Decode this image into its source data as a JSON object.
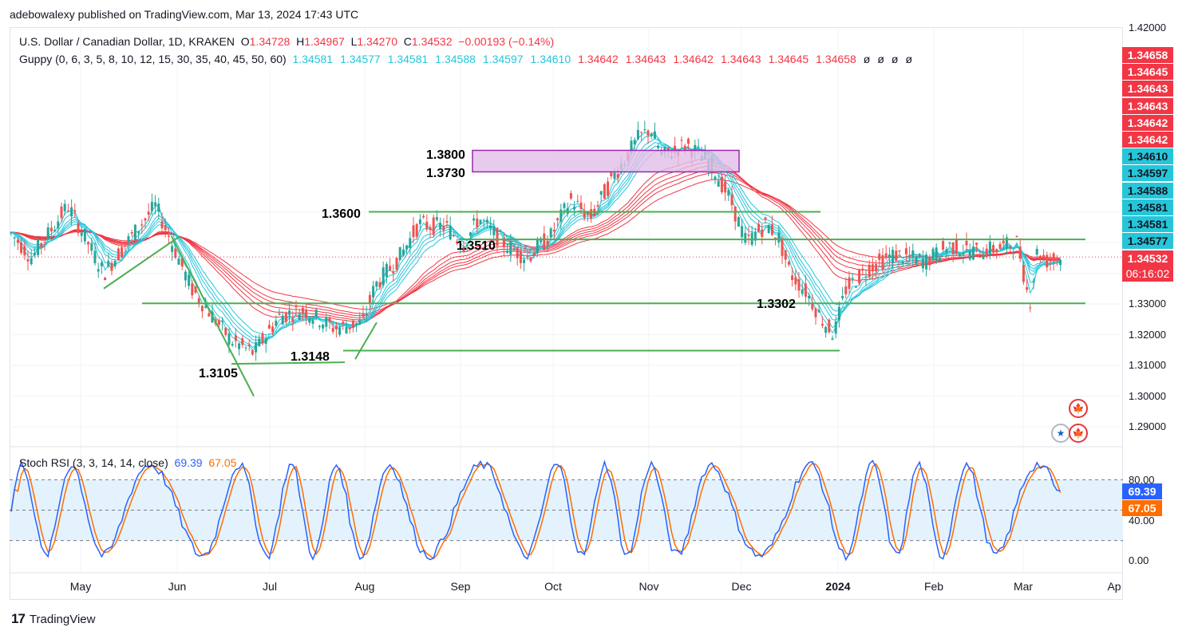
{
  "header": {
    "publisher": "adebowalexy published on TradingView.com, Mar 13, 2024 17:43 UTC"
  },
  "legend": {
    "symbol": "U.S. Dollar / Canadian Dollar, 1D, KRAKEN",
    "open_label": "O",
    "open": "1.34728",
    "high_label": "H",
    "high": "1.34967",
    "low_label": "L",
    "low": "1.34270",
    "close_label": "C",
    "close": "1.34532",
    "change": "−0.00193 (−0.14%)",
    "guppy_label": "Guppy (0, 6, 3, 5, 8, 10, 12, 15, 30, 35, 40, 45, 50, 60)",
    "guppy_values": [
      {
        "v": "1.34581",
        "c": "#26c6da"
      },
      {
        "v": "1.34577",
        "c": "#26c6da"
      },
      {
        "v": "1.34581",
        "c": "#26c6da"
      },
      {
        "v": "1.34588",
        "c": "#26c6da"
      },
      {
        "v": "1.34597",
        "c": "#26c6da"
      },
      {
        "v": "1.34610",
        "c": "#26c6da"
      },
      {
        "v": "1.34642",
        "c": "#f23645"
      },
      {
        "v": "1.34643",
        "c": "#f23645"
      },
      {
        "v": "1.34642",
        "c": "#f23645"
      },
      {
        "v": "1.34643",
        "c": "#f23645"
      },
      {
        "v": "1.34645",
        "c": "#f23645"
      },
      {
        "v": "1.34658",
        "c": "#f23645"
      },
      {
        "v": "ø",
        "c": "#131722"
      },
      {
        "v": "ø",
        "c": "#131722"
      },
      {
        "v": "ø",
        "c": "#131722"
      },
      {
        "v": "ø",
        "c": "#131722"
      }
    ],
    "stoch_label": "Stoch RSI (3, 3, 14, 14, close)",
    "stoch_k": "69.39",
    "stoch_d": "67.05"
  },
  "colors": {
    "up_candle": "#26a69a",
    "down_candle": "#ef5350",
    "fast_ema": "#26c6da",
    "slow_ema": "#f23645",
    "level_line": "#4caf50",
    "box_fill": "#e1bee7",
    "box_border": "#9c27b0",
    "stoch_k": "#2962ff",
    "stoch_d": "#ff6d00",
    "rsi_band": "#e3f2fd"
  },
  "price_axis": {
    "ticks": [
      "1.42000",
      "1.33000",
      "1.32000",
      "1.31000",
      "1.30000",
      "1.29000"
    ],
    "tags": [
      {
        "v": "1.34658",
        "c": "#f23645"
      },
      {
        "v": "1.34645",
        "c": "#f23645"
      },
      {
        "v": "1.34643",
        "c": "#f23645"
      },
      {
        "v": "1.34643",
        "c": "#f23645"
      },
      {
        "v": "1.34642",
        "c": "#f23645"
      },
      {
        "v": "1.34642",
        "c": "#f23645"
      },
      {
        "v": "1.34610",
        "c": "#26c6da"
      },
      {
        "v": "1.34597",
        "c": "#26c6da"
      },
      {
        "v": "1.34588",
        "c": "#26c6da"
      },
      {
        "v": "1.34581",
        "c": "#26c6da"
      },
      {
        "v": "1.34581",
        "c": "#26c6da"
      },
      {
        "v": "1.34577",
        "c": "#26c6da"
      }
    ],
    "last_price": "1.34532",
    "countdown": "06:16:02"
  },
  "rsi_axis": {
    "ticks": [
      "80.00",
      "40.00",
      "0.00"
    ]
  },
  "time_axis": {
    "labels": [
      "May",
      "Jun",
      "Jul",
      "Aug",
      "Sep",
      "Oct",
      "Nov",
      "Dec",
      "2024",
      "Feb",
      "Mar",
      "Ap"
    ]
  },
  "annotations": [
    "1.3800",
    "1.3730",
    "1.3600",
    "1.3510",
    "1.3302",
    "1.3148",
    "1.3105"
  ],
  "brand": {
    "name": "TradingView"
  },
  "chart_data": {
    "type": "candlestick",
    "symbol": "USD/CAD",
    "x_range": [
      "Apr 2023",
      "Mar 2024"
    ],
    "ylim": [
      1.285,
      1.42
    ],
    "support_resistance": [
      1.36,
      1.351,
      1.3302,
      1.3148
    ],
    "zone": [
      1.373,
      1.38
    ],
    "trendlines": [
      [
        1.3105,
        1.3148
      ]
    ],
    "key_points": [
      {
        "date": "Apr",
        "price": 1.353
      },
      {
        "date": "May",
        "price": 1.365
      },
      {
        "date": "Jun",
        "price": 1.347
      },
      {
        "date": "Jul",
        "price": 1.315
      },
      {
        "date": "Aug",
        "price": 1.342
      },
      {
        "date": "Sep",
        "price": 1.358
      },
      {
        "date": "Oct",
        "price": 1.362
      },
      {
        "date": "Nov",
        "price": 1.389
      },
      {
        "date": "Dec",
        "price": 1.355
      },
      {
        "date": "Dec",
        "price": 1.318
      },
      {
        "date": "2024",
        "price": 1.338
      },
      {
        "date": "Feb",
        "price": 1.349
      },
      {
        "date": "Mar",
        "price": 1.3453
      }
    ],
    "stoch_rsi": {
      "k": 69.39,
      "d": 67.05,
      "levels": [
        80,
        40,
        20
      ],
      "ylim": [
        0,
        100
      ]
    }
  }
}
